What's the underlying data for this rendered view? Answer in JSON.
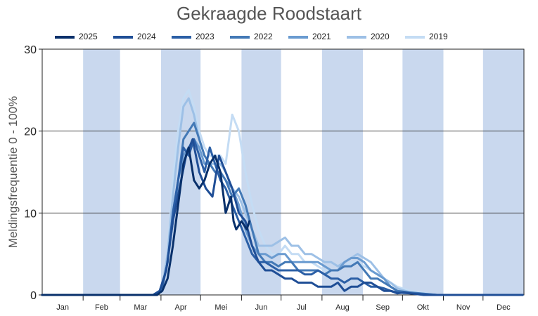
{
  "chart_data": {
    "type": "line",
    "title": "Gekraagde Roodstaart",
    "xlabel": "",
    "ylabel": "Meldingsfrequentie 0 - 100%",
    "ylim": [
      0,
      30
    ],
    "yticks": [
      0,
      10,
      20,
      30
    ],
    "grid": "horizontal",
    "legend_position": "top",
    "month_bands": "alternating-blue",
    "categories": [
      "Jan",
      "Feb",
      "Mar",
      "Apr",
      "Mei",
      "Jun",
      "Jul",
      "Aug",
      "Sep",
      "Okt",
      "Nov",
      "Dec"
    ],
    "x_unit": "day-of-year",
    "series": [
      {
        "name": "2025",
        "color": "#08306b",
        "x": [
          1,
          60,
          88,
          92,
          96,
          100,
          104,
          108,
          112,
          116,
          120,
          124,
          128,
          132,
          136,
          140,
          144,
          146,
          148,
          152,
          156,
          158
        ],
        "y": [
          0,
          0,
          0,
          0.5,
          2,
          6,
          11,
          16,
          18,
          14,
          13,
          14,
          16,
          17,
          15,
          10,
          12,
          9,
          8,
          9,
          8,
          9
        ]
      },
      {
        "name": "2024",
        "color": "#1f4e96",
        "x": [
          1,
          70,
          85,
          90,
          95,
          100,
          105,
          110,
          115,
          120,
          125,
          130,
          135,
          140,
          145,
          150,
          155,
          160,
          165,
          170,
          175,
          180,
          185,
          190,
          195,
          200,
          205,
          210,
          215,
          220,
          225,
          230,
          235,
          240,
          245,
          250,
          255,
          260,
          265,
          270,
          275,
          280,
          290,
          300,
          365
        ],
        "y": [
          0,
          0,
          0,
          0.5,
          3,
          9,
          13,
          17,
          19,
          15,
          13,
          12,
          17,
          15,
          13,
          10,
          9,
          6,
          4,
          3,
          3,
          2.5,
          2,
          2,
          1.5,
          1.5,
          1.5,
          1,
          1,
          1,
          1.5,
          0.5,
          1,
          1,
          1.5,
          1.5,
          1,
          0.5,
          0.5,
          0.2,
          0.3,
          0.2,
          0,
          0,
          0
        ]
      },
      {
        "name": "2023",
        "color": "#2b5fa6",
        "x": [
          1,
          70,
          88,
          92,
          96,
          100,
          104,
          108,
          112,
          116,
          120,
          124,
          128,
          132,
          136,
          140,
          145,
          150,
          155,
          160,
          165,
          170,
          175,
          180,
          185,
          190,
          195,
          200,
          205,
          210,
          215,
          220,
          225,
          230,
          235,
          240,
          245,
          250,
          255,
          260,
          265,
          270,
          280,
          300,
          365
        ],
        "y": [
          0,
          0,
          0,
          1,
          4,
          10,
          14,
          18,
          17,
          19,
          17,
          15,
          18,
          16,
          14,
          13,
          11,
          9,
          7,
          5,
          4,
          4,
          3.5,
          3,
          3,
          3,
          3,
          2.5,
          2.5,
          3,
          2.5,
          2,
          2,
          1.5,
          2,
          2,
          1.5,
          1,
          1,
          0.8,
          0.5,
          0.3,
          0.2,
          0,
          0
        ]
      },
      {
        "name": "2022",
        "color": "#4379b6",
        "x": [
          1,
          70,
          88,
          92,
          96,
          100,
          104,
          108,
          112,
          116,
          120,
          124,
          128,
          132,
          136,
          140,
          145,
          150,
          155,
          160,
          165,
          170,
          175,
          180,
          185,
          190,
          195,
          200,
          205,
          210,
          215,
          220,
          225,
          230,
          235,
          240,
          245,
          250,
          255,
          260,
          265,
          270,
          280,
          300,
          365
        ],
        "y": [
          0,
          0,
          0,
          1,
          4,
          9,
          14,
          19,
          20,
          21,
          19,
          17,
          16,
          15,
          15,
          14,
          12,
          13,
          11,
          8,
          5,
          4,
          4,
          3.5,
          4,
          4,
          3,
          3,
          3,
          3,
          2.5,
          3,
          3,
          3.5,
          3.5,
          4,
          3,
          2,
          2,
          1.5,
          1,
          0.5,
          0.3,
          0,
          0
        ]
      },
      {
        "name": "2021",
        "color": "#6a9bd0",
        "x": [
          1,
          70,
          88,
          92,
          96,
          100,
          104,
          108,
          112,
          116,
          120,
          124,
          128,
          132,
          136,
          140,
          145,
          150,
          155,
          160,
          165,
          170,
          175,
          180,
          185,
          190,
          195,
          200,
          205,
          210,
          215,
          220,
          225,
          230,
          235,
          240,
          245,
          250,
          255,
          260,
          265,
          270,
          280,
          300,
          365
        ],
        "y": [
          0,
          0,
          0,
          1,
          4,
          10,
          14,
          17,
          18,
          19,
          18,
          16,
          16,
          15,
          15,
          14,
          13,
          11,
          8,
          6,
          5,
          5,
          4.5,
          5,
          5,
          4,
          4,
          4,
          4,
          4,
          3.5,
          3,
          3,
          4,
          4.5,
          4.5,
          4,
          3,
          2.5,
          2,
          1,
          0.5,
          0.2,
          0,
          0
        ]
      },
      {
        "name": "2020",
        "color": "#9dc0e6",
        "x": [
          1,
          70,
          88,
          92,
          96,
          100,
          104,
          108,
          112,
          116,
          120,
          124,
          128,
          132,
          136,
          140,
          145,
          150,
          155,
          160,
          165,
          170,
          175,
          180,
          185,
          190,
          195,
          200,
          205,
          210,
          215,
          220,
          225,
          230,
          235,
          240,
          245,
          250,
          255,
          260,
          265,
          270,
          280,
          300,
          365
        ],
        "y": [
          0,
          0,
          0,
          1,
          5,
          12,
          18,
          23,
          24,
          22,
          19,
          17,
          16,
          16,
          16,
          15,
          13,
          12,
          10,
          8,
          6,
          6,
          6,
          6.5,
          7,
          6,
          6,
          5,
          5,
          4.5,
          4,
          4,
          3.5,
          4,
          4.5,
          5,
          4.5,
          4,
          3,
          2,
          1.5,
          0.8,
          0.3,
          0,
          0
        ]
      },
      {
        "name": "2019",
        "color": "#c4dcf4",
        "x": [
          1,
          70,
          88,
          92,
          96,
          100,
          104,
          108,
          112,
          116,
          120,
          124,
          128,
          132,
          136,
          140,
          145,
          150,
          155,
          160,
          165,
          170,
          175,
          180,
          185,
          190,
          195,
          200,
          205,
          210,
          215,
          220,
          225,
          230,
          235,
          240,
          245,
          250,
          255,
          260,
          265,
          270,
          280,
          300,
          365
        ],
        "y": [
          0,
          0,
          0,
          1,
          5,
          14,
          20,
          24,
          25,
          23,
          20,
          18,
          17,
          17,
          17,
          16,
          22,
          20,
          15,
          11,
          8,
          6,
          5,
          5,
          6,
          5,
          5,
          4,
          4,
          3.5,
          3,
          3,
          3,
          3.5,
          4,
          4,
          3.5,
          3,
          2.5,
          2,
          1.5,
          1,
          0.5,
          0,
          0
        ]
      }
    ]
  }
}
